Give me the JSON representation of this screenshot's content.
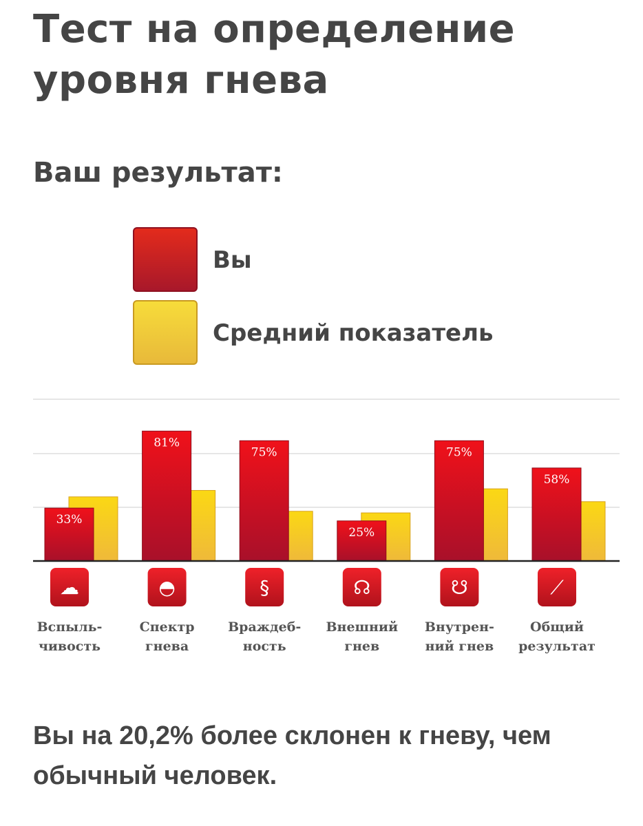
{
  "page": {
    "title": "Тест на определение уровня гнева",
    "result_heading": "Ваш результат:",
    "legend": {
      "you": "Вы",
      "average": "Средний показатель"
    },
    "conclusion": "Вы на 20,2% более склонен к гневу, чем обычный человек."
  },
  "colors": {
    "you": "#d4101f",
    "average": "#f5c518",
    "axis": "#222222",
    "grid": "#dddddd",
    "label": "#555555"
  },
  "chart_data": {
    "type": "bar",
    "title": "",
    "categories": [
      "Вспыль- чивость",
      "Спектр гнева",
      "Враждеб- ность",
      "Внешний гнев",
      "Внутрен- ний гнев",
      "Общий результат"
    ],
    "category_lines": [
      [
        "Вспыль-",
        "чивость"
      ],
      [
        "Спектр",
        "гнева"
      ],
      [
        "Враждеб-",
        "ность"
      ],
      [
        "Внешний",
        "гнев"
      ],
      [
        "Внутрен-",
        "ний гнев"
      ],
      [
        "Общий",
        "результат"
      ]
    ],
    "icons": [
      "storm-cloud-icon",
      "spectrum-fan-icon",
      "snake-icon",
      "head-outward-sound-icon",
      "head-inward-sound-icon",
      "line-graph-icon"
    ],
    "series": [
      {
        "name": "Вы",
        "values": [
          33,
          81,
          75,
          25,
          75,
          58
        ],
        "labels": [
          "33%",
          "81%",
          "75%",
          "25%",
          "75%",
          "58%"
        ]
      },
      {
        "name": "Средний показатель",
        "values": [
          40,
          44,
          31,
          30,
          45,
          37
        ]
      }
    ],
    "ylim": [
      0,
      100
    ],
    "grid": true,
    "xlabel": "",
    "ylabel": ""
  }
}
